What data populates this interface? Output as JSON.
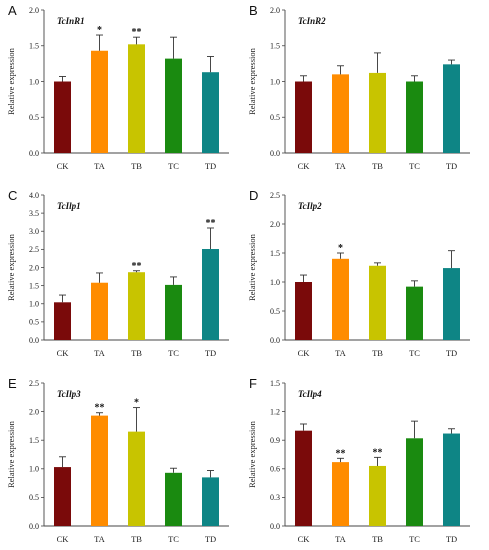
{
  "chart_data": [
    {
      "type": "bar",
      "letter": "A",
      "title": "TcInR1",
      "ylabel": "Relative expression",
      "categories": [
        "CK",
        "TA",
        "TB",
        "TC",
        "TD"
      ],
      "values": [
        1.0,
        1.43,
        1.52,
        1.32,
        1.13
      ],
      "errors": [
        0.07,
        0.22,
        0.1,
        0.3,
        0.22
      ],
      "significance": [
        "",
        "*",
        "**",
        "",
        ""
      ],
      "ylim": [
        0,
        2.0
      ],
      "yticks": [
        "0.0",
        "0.5",
        "1.0",
        "1.5",
        "2.0"
      ]
    },
    {
      "type": "bar",
      "letter": "B",
      "title": "TcInR2",
      "ylabel": "Relative expression",
      "categories": [
        "CK",
        "TA",
        "TB",
        "TC",
        "TD"
      ],
      "values": [
        1.0,
        1.1,
        1.12,
        1.0,
        1.24
      ],
      "errors": [
        0.08,
        0.12,
        0.28,
        0.08,
        0.06
      ],
      "significance": [
        "",
        "",
        "",
        "",
        ""
      ],
      "ylim": [
        0,
        2.0
      ],
      "yticks": [
        "0.0",
        "0.5",
        "1.0",
        "1.5",
        "2.0"
      ]
    },
    {
      "type": "bar",
      "letter": "C",
      "title": "TcIlp1",
      "ylabel": "Relative expression",
      "categories": [
        "CK",
        "TA",
        "TB",
        "TC",
        "TD"
      ],
      "values": [
        1.04,
        1.58,
        1.87,
        1.52,
        2.51
      ],
      "errors": [
        0.2,
        0.27,
        0.04,
        0.22,
        0.58
      ],
      "significance": [
        "",
        "",
        "**",
        "",
        "**"
      ],
      "ylim": [
        0,
        4.0
      ],
      "yticks": [
        "0.0",
        "0.5",
        "1.0",
        "1.5",
        "2.0",
        "2.5",
        "3.0",
        "3.5",
        "4.0"
      ]
    },
    {
      "type": "bar",
      "letter": "D",
      "title": "TcIlp2",
      "ylabel": "Relative expression",
      "categories": [
        "CK",
        "TA",
        "TB",
        "TC",
        "TD"
      ],
      "values": [
        1.0,
        1.4,
        1.28,
        0.92,
        1.24
      ],
      "errors": [
        0.12,
        0.1,
        0.05,
        0.1,
        0.3
      ],
      "significance": [
        "",
        "*",
        "",
        "",
        ""
      ],
      "ylim": [
        0,
        2.5
      ],
      "yticks": [
        "0.0",
        "0.5",
        "1.0",
        "1.5",
        "2.0",
        "2.5"
      ]
    },
    {
      "type": "bar",
      "letter": "E",
      "title": "TcIlp3",
      "ylabel": "Relative expression",
      "categories": [
        "CK",
        "TA",
        "TB",
        "TC",
        "TD"
      ],
      "values": [
        1.03,
        1.93,
        1.65,
        0.93,
        0.85
      ],
      "errors": [
        0.18,
        0.05,
        0.42,
        0.08,
        0.12
      ],
      "significance": [
        "",
        "**",
        "*",
        "",
        ""
      ],
      "ylim": [
        0,
        2.5
      ],
      "yticks": [
        "0.0",
        "0.5",
        "1.0",
        "1.5",
        "2.0",
        "2.5"
      ]
    },
    {
      "type": "bar",
      "letter": "F",
      "title": "TcIlp4",
      "ylabel": "Relative expression",
      "categories": [
        "CK",
        "TA",
        "TB",
        "TC",
        "TD"
      ],
      "values": [
        1.0,
        0.67,
        0.63,
        0.92,
        0.97
      ],
      "errors": [
        0.07,
        0.04,
        0.09,
        0.18,
        0.05
      ],
      "significance": [
        "",
        "**",
        "**",
        "",
        ""
      ],
      "ylim": [
        0,
        1.5
      ],
      "yticks": [
        "0.0",
        "0.3",
        "0.6",
        "0.9",
        "1.2",
        "1.5"
      ]
    }
  ],
  "colors": {
    "bars": [
      "#7a0a0a",
      "#ff8c00",
      "#c8c400",
      "#1a8a10",
      "#0e8585"
    ],
    "axis": "#444444",
    "error": "#333333"
  }
}
